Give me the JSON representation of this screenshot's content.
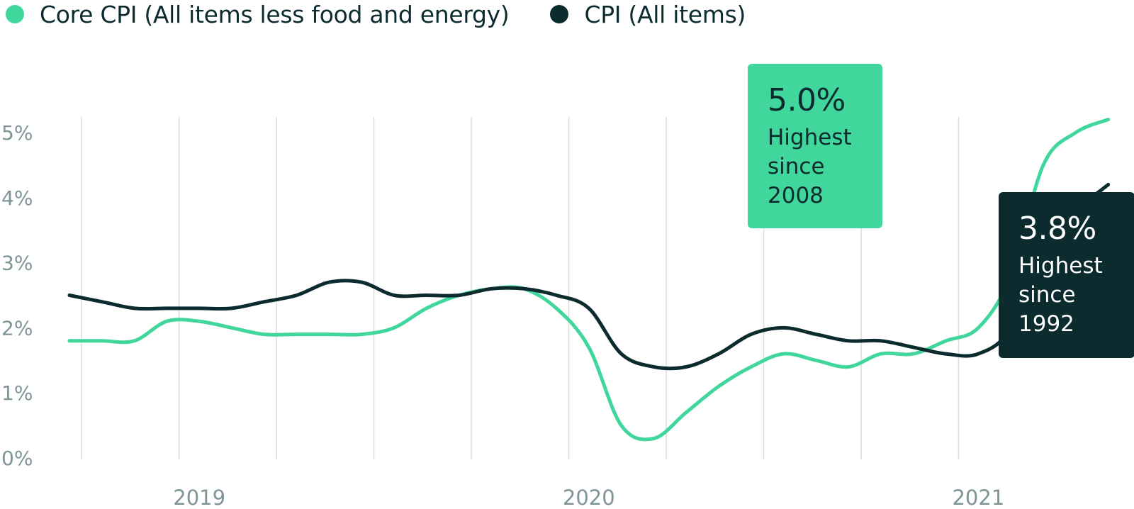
{
  "colors": {
    "core": "#40d69c",
    "cpi": "#0c2b2e",
    "grid": "#d7dcdc",
    "axis_text": "#7f9497"
  },
  "legend": [
    {
      "label": "Core CPI (All items less food and energy)",
      "color": "#40d69c"
    },
    {
      "label": "CPI (All items)",
      "color": "#0c2b2e"
    }
  ],
  "callouts": {
    "core": {
      "value": "5.0%",
      "text": "Highest since 2008"
    },
    "cpi": {
      "value": "3.8%",
      "text": "Highest since 1992"
    }
  },
  "chart_data": {
    "type": "line",
    "title": "",
    "xlabel": "",
    "ylabel": "",
    "ylim": [
      0,
      5
    ],
    "yticks": [
      "0%",
      "1%",
      "2%",
      "3%",
      "4%",
      "5%"
    ],
    "xticks": [
      "2019",
      "2020",
      "2021"
    ],
    "x": [
      "2018-09",
      "2018-10",
      "2018-11",
      "2018-12",
      "2019-01",
      "2019-02",
      "2019-03",
      "2019-04",
      "2019-05",
      "2019-06",
      "2019-07",
      "2019-08",
      "2019-09",
      "2019-10",
      "2019-11",
      "2019-12",
      "2020-01",
      "2020-02",
      "2020-03",
      "2020-04",
      "2020-05",
      "2020-06",
      "2020-07",
      "2020-08",
      "2020-09",
      "2020-10",
      "2020-11",
      "2020-12",
      "2021-01",
      "2021-02",
      "2021-03",
      "2021-04",
      "2021-05"
    ],
    "grid": true,
    "legend_position": "top-left",
    "series": [
      {
        "name": "Core CPI (All items less food and energy)",
        "color": "#40d69c",
        "values": [
          1.8,
          1.8,
          1.8,
          2.1,
          2.1,
          2.0,
          1.9,
          1.9,
          1.9,
          1.9,
          2.0,
          2.3,
          2.5,
          2.6,
          2.6,
          2.3,
          1.7,
          0.5,
          0.3,
          0.7,
          1.1,
          1.4,
          1.6,
          1.5,
          1.4,
          1.6,
          1.6,
          1.8,
          2.0,
          2.8,
          4.5,
          5.0,
          5.2
        ]
      },
      {
        "name": "CPI (All items)",
        "color": "#0c2b2e",
        "values": [
          2.5,
          2.4,
          2.3,
          2.3,
          2.3,
          2.3,
          2.4,
          2.5,
          2.7,
          2.7,
          2.5,
          2.5,
          2.5,
          2.6,
          2.6,
          2.5,
          2.3,
          1.6,
          1.4,
          1.4,
          1.6,
          1.9,
          2.0,
          1.9,
          1.8,
          1.8,
          1.7,
          1.6,
          1.6,
          2.0,
          3.3,
          3.8,
          4.2
        ]
      }
    ]
  }
}
